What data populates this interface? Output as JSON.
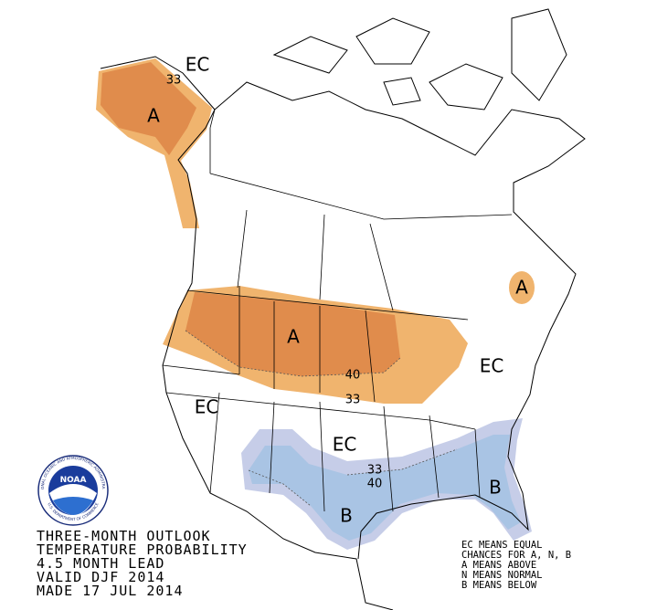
{
  "title": {
    "lines": [
      "THREE-MONTH OUTLOOK",
      "TEMPERATURE PROBABILITY",
      "4.5 MONTH LEAD",
      "VALID DJF 2014",
      "MADE 17 JUL 2014"
    ]
  },
  "legend": {
    "lines": [
      "EC MEANS EQUAL",
      "CHANCES FOR A, N, B",
      "A MEANS ABOVE",
      "N MEANS NORMAL",
      "B MEANS BELOW"
    ]
  },
  "logo": {
    "name": "NOAA",
    "ring_top": "NATIONAL OCEANIC AND ATMOSPHERIC ADMINISTRATION",
    "ring_bottom": "U.S. DEPARTMENT OF COMMERCE"
  },
  "map": {
    "labels": [
      "EC",
      "33",
      "A",
      "A",
      "A",
      "40",
      "33",
      "EC",
      "EC",
      "EC",
      "33",
      "40",
      "B",
      "B"
    ]
  }
}
